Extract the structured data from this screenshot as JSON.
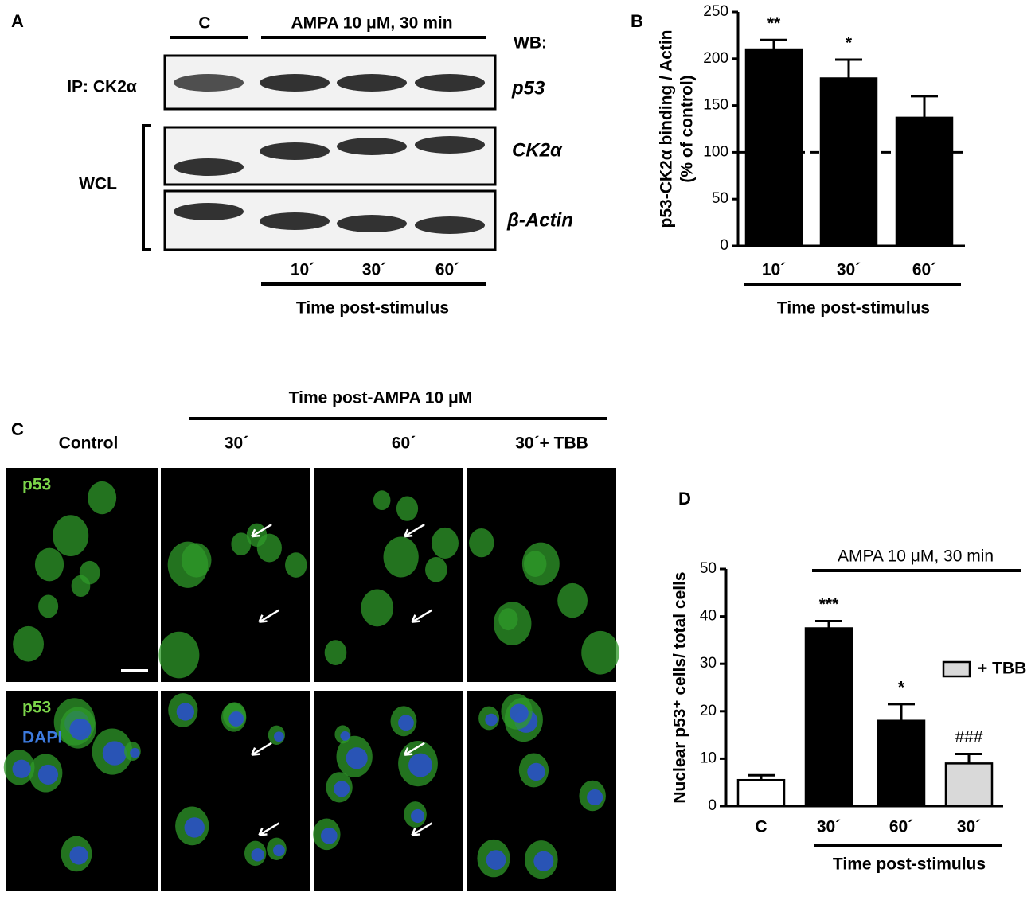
{
  "panel_a": {
    "label": "A",
    "control": "C",
    "treatment": "AMPA 10 μM, 30 min",
    "wb": "WB:",
    "ip": "IP: CK2α",
    "wcl": "WCL",
    "blots": [
      "p53",
      "CK2α",
      "β-Actin"
    ],
    "times": [
      "10´",
      "30´",
      "60´"
    ],
    "xlabel": "Time post-stimulus"
  },
  "panel_c": {
    "label": "C",
    "title": "Time post-AMPA 10 μM",
    "columns": [
      "Control",
      "30´",
      "60´",
      "30´+ TBB"
    ],
    "row1": "p53",
    "row2": [
      "p53",
      "DAPI"
    ]
  },
  "chart_data": [
    {
      "type": "bar",
      "label": "B",
      "categories": [
        "10´",
        "30´",
        "60´"
      ],
      "values": [
        210,
        179,
        137
      ],
      "errors": [
        10,
        20,
        23
      ],
      "annotations": [
        "**",
        "*",
        null
      ],
      "color": "#000000",
      "ylim": [
        0,
        250
      ],
      "yticks": [
        0,
        50,
        100,
        150,
        200,
        250
      ],
      "reference_line": 100,
      "ylabel": [
        "p53-CK2α binding / Actin",
        "(% of control)"
      ],
      "xlabel": "Time post-stimulus"
    },
    {
      "type": "bar",
      "label": "D",
      "categories": [
        "C",
        "30´",
        "60´",
        "30´"
      ],
      "values": [
        5.5,
        37.5,
        18,
        9
      ],
      "errors": [
        1,
        1.5,
        3.5,
        2
      ],
      "annotations": [
        null,
        "***",
        "*",
        "###"
      ],
      "colors": [
        "#ffffff",
        "#000000",
        "#000000",
        "#d9d9d9"
      ],
      "ylim": [
        0,
        50
      ],
      "yticks": [
        0,
        10,
        20,
        30,
        40,
        50
      ],
      "ylabel": [
        "Nuclear p53⁺ cells/ total cells"
      ],
      "group_label": "AMPA 10 μM, 30 min",
      "legend": {
        "name": "+ TBB",
        "color": "#d9d9d9"
      },
      "xlabel": "Time post-stimulus"
    }
  ]
}
